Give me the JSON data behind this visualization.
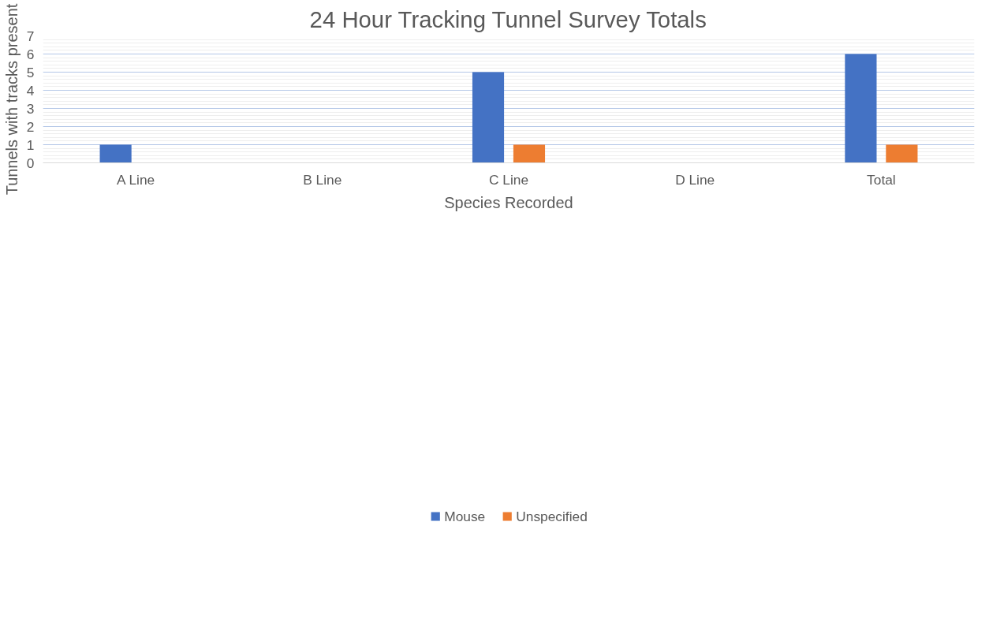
{
  "chart_data": {
    "type": "bar",
    "title": "24 Hour Tracking Tunnel Survey Totals",
    "xlabel": "Species Recorded",
    "ylabel": "Tunnels with tracks present",
    "categories": [
      "A Line",
      "B Line",
      "C Line",
      "D Line",
      "Total"
    ],
    "series": [
      {
        "name": "Mouse",
        "color": "#4472c4",
        "values": [
          1,
          0,
          5,
          0,
          6
        ]
      },
      {
        "name": "Unspecified",
        "color": "#ed7d31",
        "values": [
          0,
          0,
          1,
          0,
          1
        ]
      }
    ],
    "ylim": [
      0,
      7
    ],
    "yticks": [
      0,
      1,
      2,
      3,
      4,
      5,
      6,
      7
    ],
    "grid": "y",
    "legend": "bottom"
  }
}
